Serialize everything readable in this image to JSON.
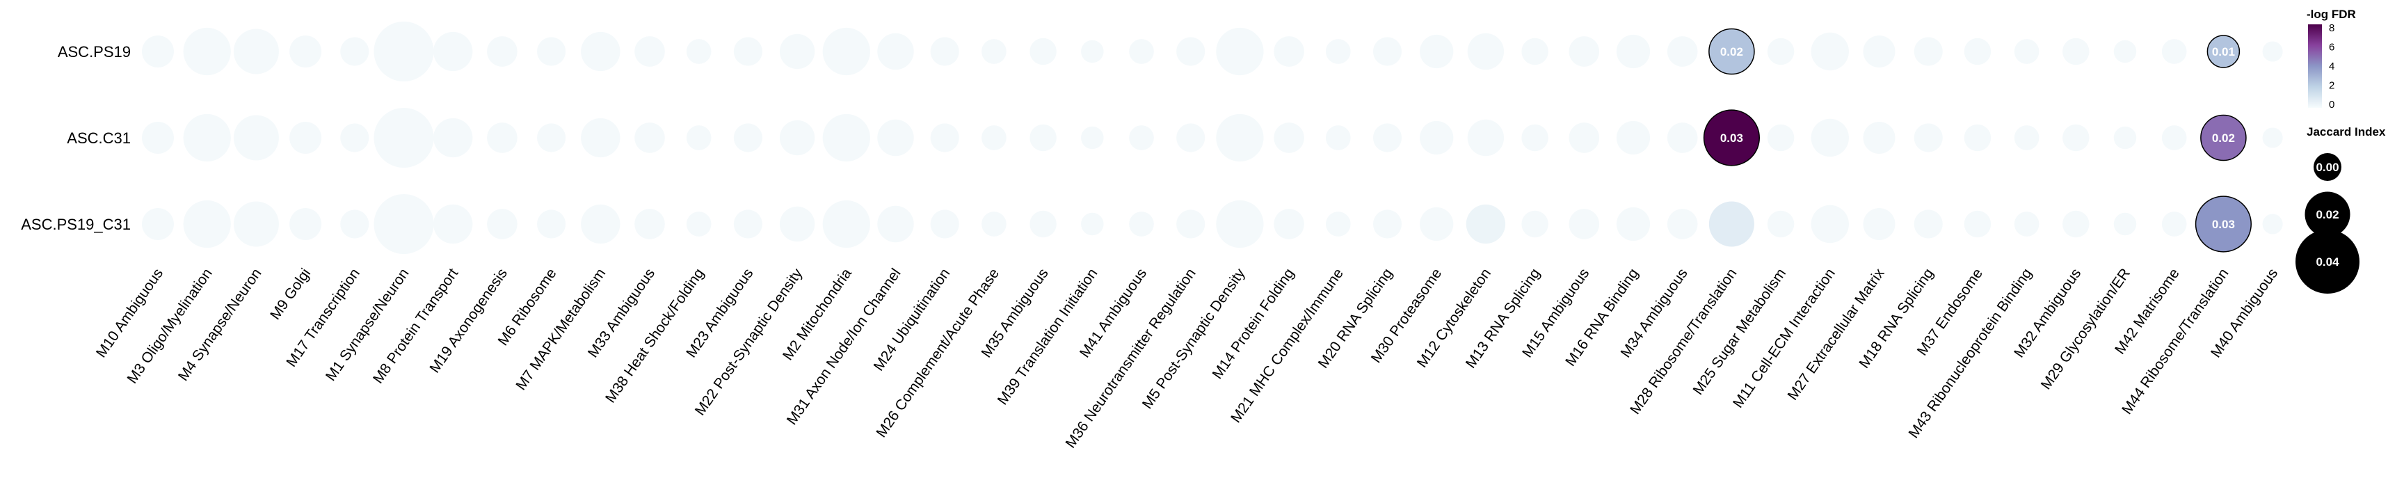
{
  "chart_data": {
    "type": "heatmap",
    "rows": [
      "ASC.PS19",
      "ASC.C31",
      "ASC.PS19_C31"
    ],
    "columns": [
      "M10 Ambiguous",
      "M3 Oligo/Myelination",
      "M4 Synapse/Neuron",
      "M9 Golgi",
      "M17 Transcription",
      "M1 Synapse/Neuron",
      "M8 Protein Transport",
      "M19 Axonogenesis",
      "M6 Ribosome",
      "M7 MAPK/Metabolism",
      "M33 Ambiguous",
      "M38 Heat Shock/Folding",
      "M23 Ambiguous",
      "M22 Post-Synaptic Density",
      "M2 Mitochondria",
      "M31 Axon Node/Ion Channel",
      "M24 Ubiquitination",
      "M26 Complement/Acute Phase",
      "M35 Ambiguous",
      "M39 Translation Initiation",
      "M41 Ambiguous",
      "M36 Neurotransmitter Regulation",
      "M5 Post-Synaptic Density",
      "M14 Protein Folding",
      "M21 MHC Complex/Immune",
      "M20 RNA Splicing",
      "M30 Proteasome",
      "M12 Cytoskeleton",
      "M13 RNA Splicing",
      "M15 Ambiguous",
      "M16 RNA Binding",
      "M34 Ambiguous",
      "M28 Ribosome/Translation",
      "M25 Sugar Metabolism",
      "M11 Cell-ECM Interaction",
      "M27 Extracellular Matrix",
      "M18 RNA Splicing",
      "M37 Endosome",
      "M43 Ribonucleoprotein Binding",
      "M32 Ambiguous",
      "M29 Glycosylation/ER",
      "M42 Matrisome",
      "M44 Ribosome/Translation",
      "M40 Ambiguous"
    ],
    "module_size_index": [
      0.01,
      0.022,
      0.02,
      0.01,
      0.008,
      0.035,
      0.015,
      0.009,
      0.008,
      0.015,
      0.009,
      0.006,
      0.008,
      0.012,
      0.022,
      0.013,
      0.008,
      0.006,
      0.007,
      0.005,
      0.006,
      0.008,
      0.022,
      0.009,
      0.006,
      0.008,
      0.011,
      0.013,
      0.007,
      0.009,
      0.011,
      0.009,
      0.019,
      0.007,
      0.014,
      0.01,
      0.008,
      0.007,
      0.006,
      0.007,
      0.005,
      0.006,
      0.016,
      0.004
    ],
    "highlights": [
      {
        "row": "ASC.PS19",
        "column": "M28 Ribosome/Translation",
        "jaccard": 0.02,
        "neg_log_fdr": 2.5,
        "label": "0.02"
      },
      {
        "row": "ASC.PS19",
        "column": "M44 Ribosome/Translation",
        "jaccard": 0.01,
        "neg_log_fdr": 2.5,
        "label": "0.01"
      },
      {
        "row": "ASC.C31",
        "column": "M28 Ribosome/Translation",
        "jaccard": 0.03,
        "neg_log_fdr": 8.0,
        "label": "0.03"
      },
      {
        "row": "ASC.C31",
        "column": "M44 Ribosome/Translation",
        "jaccard": 0.02,
        "neg_log_fdr": 5.0,
        "label": "0.02"
      },
      {
        "row": "ASC.PS19_C31",
        "column": "M44 Ribosome/Translation",
        "jaccard": 0.03,
        "neg_log_fdr": 4.0,
        "label": "0.03"
      },
      {
        "row": "ASC.PS19_C31",
        "column": "M28 Ribosome/Translation",
        "jaccard": 0.02,
        "neg_log_fdr": 0.8,
        "label": ""
      },
      {
        "row": "ASC.PS19_C31",
        "column": "M12 Cytoskeleton",
        "jaccard": 0.015,
        "neg_log_fdr": 0.4,
        "label": ""
      }
    ],
    "color_legend": {
      "title": "-log FDR",
      "ticks": [
        "8",
        "6",
        "4",
        "2",
        "0"
      ],
      "range": [
        0,
        8
      ],
      "colors": [
        "#f7fcfd",
        "#bfd3e6",
        "#8c96c6",
        "#88419d",
        "#4d004b"
      ]
    },
    "size_legend": {
      "title": "Jaccard Index",
      "entries": [
        {
          "label": "0.00",
          "value": 0.0
        },
        {
          "label": "0.02",
          "value": 0.02
        },
        {
          "label": "0.04",
          "value": 0.04
        }
      ]
    }
  }
}
